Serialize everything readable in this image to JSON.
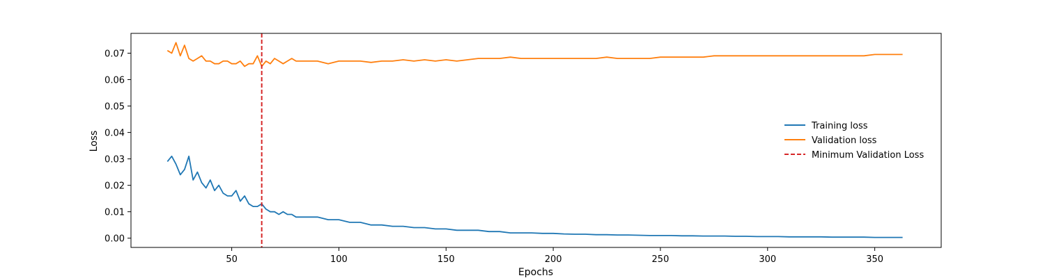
{
  "chart_data": {
    "type": "line",
    "xlabel": "Epochs",
    "ylabel": "Loss",
    "xlim": [
      3,
      381
    ],
    "ylim": [
      -0.0035,
      0.0775
    ],
    "xticks": [
      50,
      100,
      150,
      200,
      250,
      300,
      350
    ],
    "yticks": [
      0.0,
      0.01,
      0.02,
      0.03,
      0.04,
      0.05,
      0.06,
      0.07
    ],
    "ytick_labels": [
      "0.00",
      "0.01",
      "0.02",
      "0.03",
      "0.04",
      "0.05",
      "0.06",
      "0.07"
    ],
    "legend_position": "center-right",
    "series": [
      {
        "name": "Training loss",
        "color": "#1f77b4",
        "x": [
          20,
          22,
          24,
          26,
          28,
          30,
          32,
          34,
          36,
          38,
          40,
          42,
          44,
          46,
          48,
          50,
          52,
          54,
          56,
          58,
          60,
          62,
          64,
          66,
          68,
          70,
          72,
          74,
          76,
          78,
          80,
          85,
          90,
          95,
          100,
          105,
          110,
          115,
          120,
          125,
          130,
          135,
          140,
          145,
          150,
          155,
          160,
          165,
          170,
          175,
          180,
          185,
          190,
          195,
          200,
          205,
          210,
          215,
          220,
          225,
          230,
          235,
          240,
          245,
          250,
          255,
          260,
          265,
          270,
          275,
          280,
          285,
          290,
          295,
          300,
          305,
          310,
          315,
          320,
          325,
          330,
          335,
          340,
          345,
          350,
          355,
          360,
          363
        ],
        "values": [
          0.029,
          0.031,
          0.028,
          0.024,
          0.026,
          0.031,
          0.022,
          0.025,
          0.021,
          0.019,
          0.022,
          0.018,
          0.02,
          0.017,
          0.016,
          0.016,
          0.018,
          0.014,
          0.016,
          0.013,
          0.012,
          0.012,
          0.013,
          0.011,
          0.01,
          0.01,
          0.009,
          0.01,
          0.009,
          0.009,
          0.008,
          0.008,
          0.008,
          0.007,
          0.007,
          0.006,
          0.006,
          0.005,
          0.005,
          0.0045,
          0.0045,
          0.004,
          0.004,
          0.0035,
          0.0035,
          0.003,
          0.003,
          0.003,
          0.0025,
          0.0025,
          0.002,
          0.002,
          0.002,
          0.0018,
          0.0018,
          0.0016,
          0.0015,
          0.0015,
          0.0013,
          0.0013,
          0.0012,
          0.0012,
          0.0011,
          0.001,
          0.001,
          0.001,
          0.0009,
          0.0009,
          0.0008,
          0.0008,
          0.0008,
          0.0007,
          0.0007,
          0.0006,
          0.0006,
          0.0006,
          0.0005,
          0.0005,
          0.0005,
          0.0005,
          0.0004,
          0.0004,
          0.0004,
          0.0004,
          0.0003,
          0.0003,
          0.0003,
          0.0003
        ]
      },
      {
        "name": "Validation loss",
        "color": "#ff7f0e",
        "x": [
          20,
          22,
          24,
          26,
          28,
          30,
          32,
          34,
          36,
          38,
          40,
          42,
          44,
          46,
          48,
          50,
          52,
          54,
          56,
          58,
          60,
          62,
          64,
          66,
          68,
          70,
          72,
          74,
          76,
          78,
          80,
          85,
          90,
          95,
          100,
          105,
          110,
          115,
          120,
          125,
          130,
          135,
          140,
          145,
          150,
          155,
          160,
          165,
          170,
          175,
          180,
          185,
          190,
          195,
          200,
          205,
          210,
          215,
          220,
          225,
          230,
          235,
          240,
          245,
          250,
          255,
          260,
          265,
          270,
          275,
          280,
          285,
          290,
          295,
          300,
          305,
          310,
          315,
          320,
          325,
          330,
          335,
          340,
          345,
          350,
          355,
          360,
          363
        ],
        "values": [
          0.071,
          0.07,
          0.074,
          0.069,
          0.073,
          0.068,
          0.067,
          0.068,
          0.069,
          0.067,
          0.067,
          0.066,
          0.066,
          0.067,
          0.067,
          0.066,
          0.066,
          0.067,
          0.065,
          0.066,
          0.066,
          0.069,
          0.065,
          0.067,
          0.066,
          0.068,
          0.067,
          0.066,
          0.067,
          0.068,
          0.067,
          0.067,
          0.067,
          0.066,
          0.067,
          0.067,
          0.067,
          0.0665,
          0.067,
          0.067,
          0.0675,
          0.067,
          0.0675,
          0.067,
          0.0675,
          0.067,
          0.0675,
          0.068,
          0.068,
          0.068,
          0.0685,
          0.068,
          0.068,
          0.068,
          0.068,
          0.068,
          0.068,
          0.068,
          0.068,
          0.0685,
          0.068,
          0.068,
          0.068,
          0.068,
          0.0685,
          0.0685,
          0.0685,
          0.0685,
          0.0685,
          0.069,
          0.069,
          0.069,
          0.069,
          0.069,
          0.069,
          0.069,
          0.069,
          0.069,
          0.069,
          0.069,
          0.069,
          0.069,
          0.069,
          0.069,
          0.0695,
          0.0695,
          0.0695,
          0.0695
        ]
      }
    ],
    "vline": {
      "name": "Minimum Validation Loss",
      "x": 64,
      "color": "#d62728",
      "style": "dashed"
    }
  }
}
